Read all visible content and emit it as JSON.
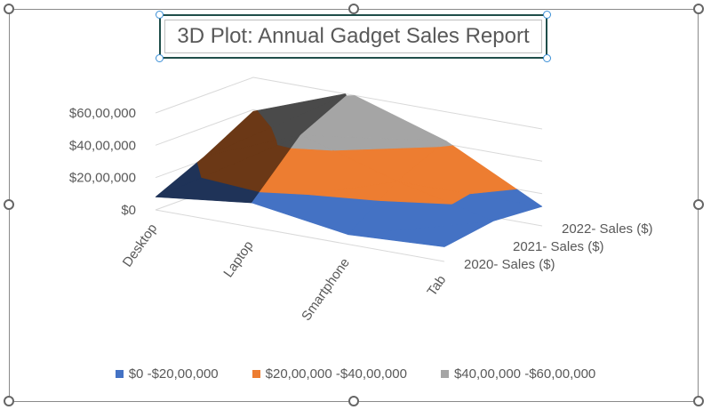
{
  "chart_data": {
    "type": "surface",
    "title": "3D Plot: Annual Gadget Sales Report",
    "categories": [
      "Desktop",
      "Laptop",
      "Smartphone",
      "Tab"
    ],
    "series": [
      {
        "name": "2020- Sales ($)",
        "values": [
          800000,
          1500000,
          600000,
          900000
        ]
      },
      {
        "name": "2021- Sales ($)",
        "values": [
          2200000,
          4600000,
          2800000,
          1400000
        ]
      },
      {
        "name": "2022- Sales ($)",
        "values": [
          3900000,
          6100000,
          4200000,
          1200000
        ]
      }
    ],
    "yticks": [
      "$0",
      "$20,00,000",
      "$40,00,000",
      "$60,00,000"
    ],
    "ylim": [
      0,
      6000000
    ],
    "grid": true,
    "legend_position": "bottom",
    "bands": [
      {
        "label": "$0 -$20,00,000",
        "color": "#4472c4"
      },
      {
        "label": "$20,00,000 -$40,00,000",
        "color": "#ed7d31"
      },
      {
        "label": "$40,00,000 -$60,00,000",
        "color": "#a5a5a5"
      }
    ]
  }
}
